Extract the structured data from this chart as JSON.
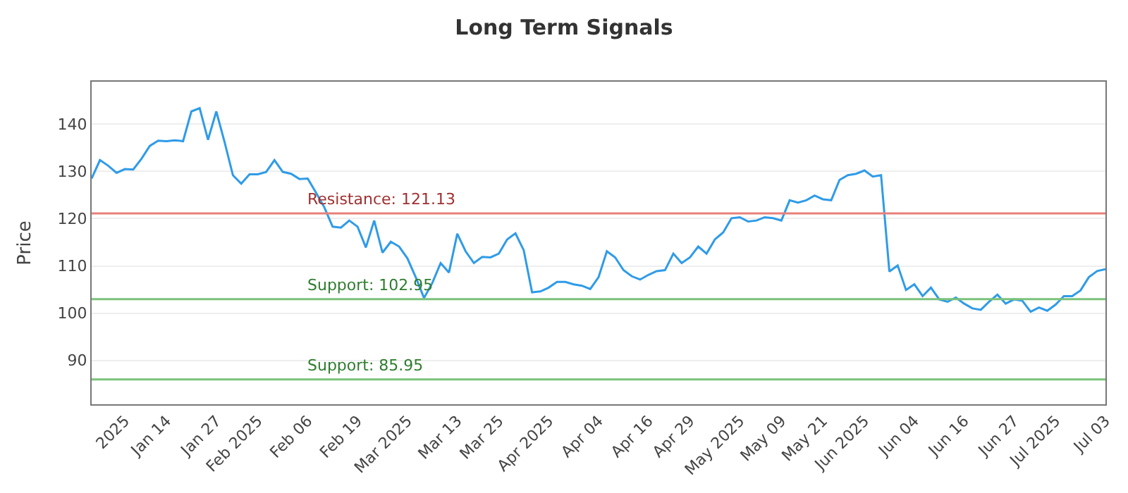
{
  "chart_data": {
    "type": "line",
    "title": "Long Term Signals",
    "ylabel": "Price",
    "categories": [
      null,
      null,
      null,
      null,
      "2025",
      null,
      null,
      null,
      null,
      "Jan 14",
      null,
      null,
      null,
      null,
      null,
      "Jan 27",
      null,
      null,
      null,
      null,
      "Feb 2025",
      null,
      null,
      null,
      null,
      null,
      "Feb 06",
      null,
      null,
      null,
      null,
      null,
      "Feb 19",
      null,
      null,
      null,
      null,
      null,
      "Mar 2025",
      null,
      null,
      null,
      null,
      null,
      "Mar 13",
      null,
      null,
      null,
      null,
      "Mar 25",
      null,
      null,
      null,
      null,
      null,
      "Apr 2025",
      null,
      null,
      null,
      null,
      null,
      "Apr 04",
      null,
      null,
      null,
      null,
      null,
      "Apr 16",
      null,
      null,
      null,
      null,
      "Apr 29",
      null,
      null,
      null,
      null,
      null,
      "May 2025",
      null,
      null,
      null,
      null,
      "May 09",
      null,
      null,
      null,
      null,
      "May 21",
      null,
      null,
      null,
      null,
      "Jun 2025",
      null,
      null,
      null,
      null,
      null,
      "Jun 04",
      null,
      null,
      null,
      null,
      null,
      "Jun 16",
      null,
      null,
      null,
      null,
      null,
      "Jun 27",
      null,
      null,
      null,
      null,
      "Jul 2025",
      null,
      null,
      null,
      null,
      null,
      "Jul 03"
    ],
    "series": [
      {
        "color": "#2f9be8",
        "values": [
          128.5,
          132.4,
          131.2,
          129.7,
          130.5,
          130.4,
          132.7,
          135.4,
          136.5,
          136.4,
          136.6,
          136.4,
          142.7,
          143.4,
          136.7,
          142.7,
          136.2,
          129.2,
          127.4,
          129.4,
          129.4,
          129.9,
          132.4,
          129.9,
          129.5,
          128.4,
          128.5,
          125.5,
          122.4,
          118.3,
          118.1,
          119.6,
          118.3,
          113.9,
          119.6,
          112.8,
          115.1,
          114.1,
          111.6,
          107.6,
          103.2,
          106.4,
          110.6,
          108.6,
          116.8,
          113.1,
          110.6,
          111.9,
          111.8,
          112.6,
          115.6,
          116.9,
          113.3,
          104.4,
          104.6,
          105.4,
          106.6,
          106.6,
          106.1,
          105.8,
          105.1,
          107.6,
          113.1,
          111.8,
          109.1,
          107.8,
          107.1,
          108.1,
          108.9,
          109.1,
          112.6,
          110.6,
          111.8,
          114.1,
          112.6,
          115.6,
          117.1,
          120.1,
          120.3,
          119.4,
          119.6,
          120.3,
          120.1,
          119.6,
          123.9,
          123.4,
          123.9,
          124.9,
          124.1,
          123.9,
          128.2,
          129.2,
          129.5,
          130.2,
          128.9,
          129.2,
          108.8,
          110.1,
          104.9,
          106.1,
          103.6,
          105.4,
          102.9,
          102.4,
          103.3,
          102.0,
          101.0,
          100.7,
          102.4,
          103.9,
          102.0,
          102.9,
          102.6,
          100.3,
          101.2,
          100.5,
          101.8,
          103.6,
          103.6,
          104.8,
          107.6,
          108.9,
          109.3
        ]
      }
    ],
    "ylim": [
      80.7,
      149
    ],
    "yticks": [
      90,
      100,
      110,
      120,
      130,
      140
    ],
    "grid": "y",
    "marker": "none",
    "line_style": "solid",
    "ref_lines": [
      {
        "axis": "y",
        "value": 121.13,
        "label": "Resistance: 121.13",
        "color": "#e8807a"
      },
      {
        "axis": "y",
        "value": 102.95,
        "label": "Support: 102.95",
        "color": "#7ac27a"
      },
      {
        "axis": "y",
        "value": 85.95,
        "label": "Support: 85.95",
        "color": "#7ac27a"
      }
    ]
  }
}
